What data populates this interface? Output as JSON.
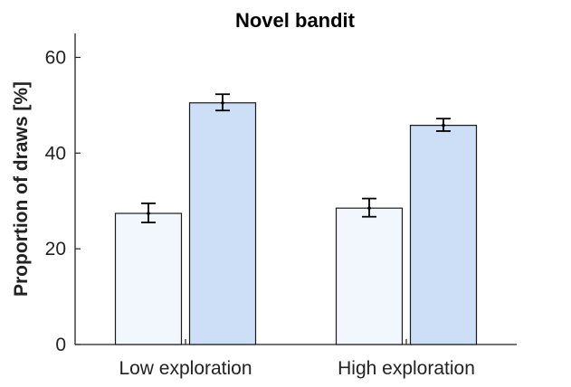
{
  "chart_data": {
    "type": "bar",
    "title": "Novel bandit",
    "xlabel": "",
    "ylabel": "Proportion of draws [%]",
    "ylim": [
      0,
      65
    ],
    "yticks": [
      0,
      20,
      40,
      60
    ],
    "categories": [
      "Low exploration",
      "High exploration"
    ],
    "series": [
      {
        "color": "#f2f6fd",
        "values": [
          27.4,
          28.5
        ],
        "err_low": [
          25.5,
          26.7
        ],
        "err_high": [
          29.5,
          30.5
        ]
      },
      {
        "color": "#ccdff7",
        "values": [
          50.5,
          45.8
        ],
        "err_low": [
          48.9,
          44.6
        ],
        "err_high": [
          52.3,
          47.2
        ]
      }
    ],
    "grid": false,
    "legend": "none"
  }
}
